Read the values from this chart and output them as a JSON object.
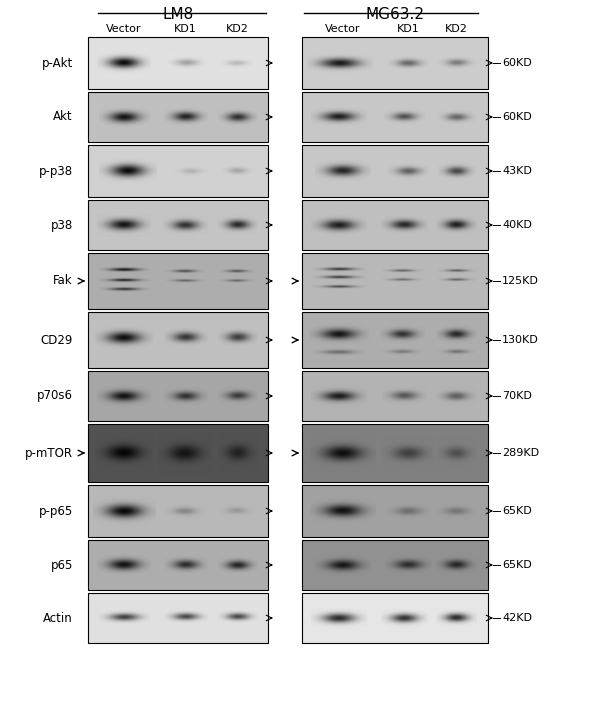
{
  "title_lm8": "LM8",
  "title_mg": "MG63.2",
  "col_labels_lm8": [
    "Vector",
    "KD1",
    "KD2"
  ],
  "col_labels_mg": [
    "Vector",
    "KD1",
    "KD2"
  ],
  "row_labels": [
    "p-Akt",
    "Akt",
    "p-p38",
    "p38",
    "Fak",
    "CD29",
    "p70s6",
    "p-mTOR",
    "p-p65",
    "p65",
    "Actin"
  ],
  "kd_labels": [
    "60KD",
    "60KD",
    "43KD",
    "40KD",
    "125KD",
    "130KD",
    "70KD",
    "289KD",
    "65KD",
    "65KD",
    "42KD"
  ],
  "left_arrows": [
    false,
    false,
    false,
    false,
    true,
    false,
    false,
    true,
    false,
    false,
    false
  ],
  "right_arrows": [
    false,
    false,
    false,
    false,
    true,
    true,
    false,
    true,
    false,
    false,
    false
  ],
  "background": "#ffffff",
  "figsize": [
    6.0,
    7.07
  ],
  "dpi": 100
}
